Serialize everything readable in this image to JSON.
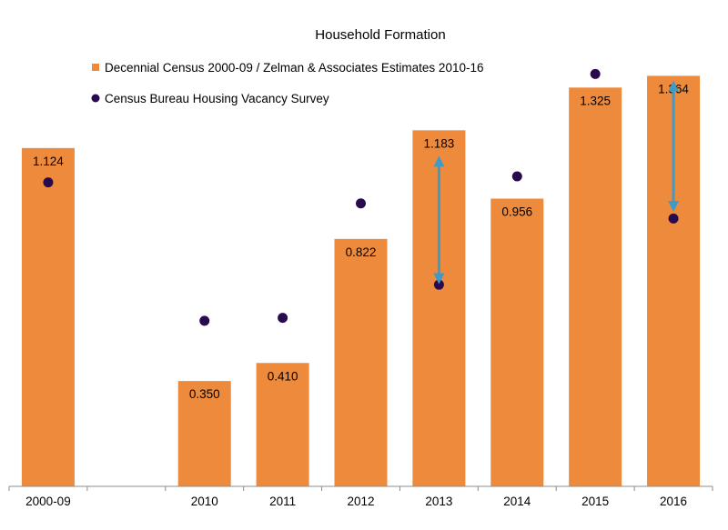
{
  "chart_data": {
    "type": "bar",
    "title": "Household Formation",
    "xlabel": "",
    "ylabel": "",
    "categories": [
      "2000-09",
      "",
      "2010",
      "2011",
      "2012",
      "2013",
      "2014",
      "2015",
      "2016"
    ],
    "series": [
      {
        "name": "Decennial Census 2000-09 / Zelman & Associates Estimates 2010-16",
        "kind": "bar",
        "values": [
          1.124,
          null,
          0.35,
          0.41,
          0.822,
          1.183,
          0.956,
          1.325,
          1.364
        ],
        "labels": [
          "1.124",
          "",
          "0.350",
          "0.410",
          "0.822",
          "1.183",
          "0.956",
          "1.325",
          "1.364"
        ]
      },
      {
        "name": "Census Bureau Housing Vacancy Survey",
        "kind": "dot",
        "values": [
          1.01,
          null,
          0.55,
          0.56,
          0.94,
          0.67,
          1.03,
          1.37,
          0.89
        ]
      }
    ],
    "arrows": [
      {
        "category": "2013",
        "from": 1.08,
        "to": 0.69
      },
      {
        "category": "2016",
        "from": 1.33,
        "to": 0.93
      }
    ],
    "ylim": [
      0,
      1.48
    ],
    "grid": false,
    "legend_position": "top-center",
    "colors": {
      "bar": "#EE8A3C",
      "dot": "#2A0A4E",
      "arrow": "#3E9BC8",
      "axis": "#8C8C8C"
    }
  }
}
